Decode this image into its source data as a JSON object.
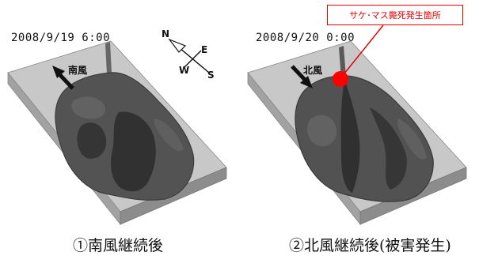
{
  "left_panel": {
    "timestamp": "2008/9/19  6:00",
    "wind_label": "南風",
    "caption": "①南風継続後"
  },
  "right_panel": {
    "timestamp": "2008/9/20  0:00",
    "wind_label": "北風",
    "caption": "②北風継続後(被害発生)",
    "callout": "サケ･マス斃死発生箇所"
  },
  "compass": {
    "n": "N",
    "e": "E",
    "w": "W",
    "s": "S"
  },
  "colors": {
    "slab_top": "#c8c8c8",
    "slab_front": "#a0a0a0",
    "slab_side": "#888888",
    "water": "#505050",
    "marker": "#ff0000"
  }
}
